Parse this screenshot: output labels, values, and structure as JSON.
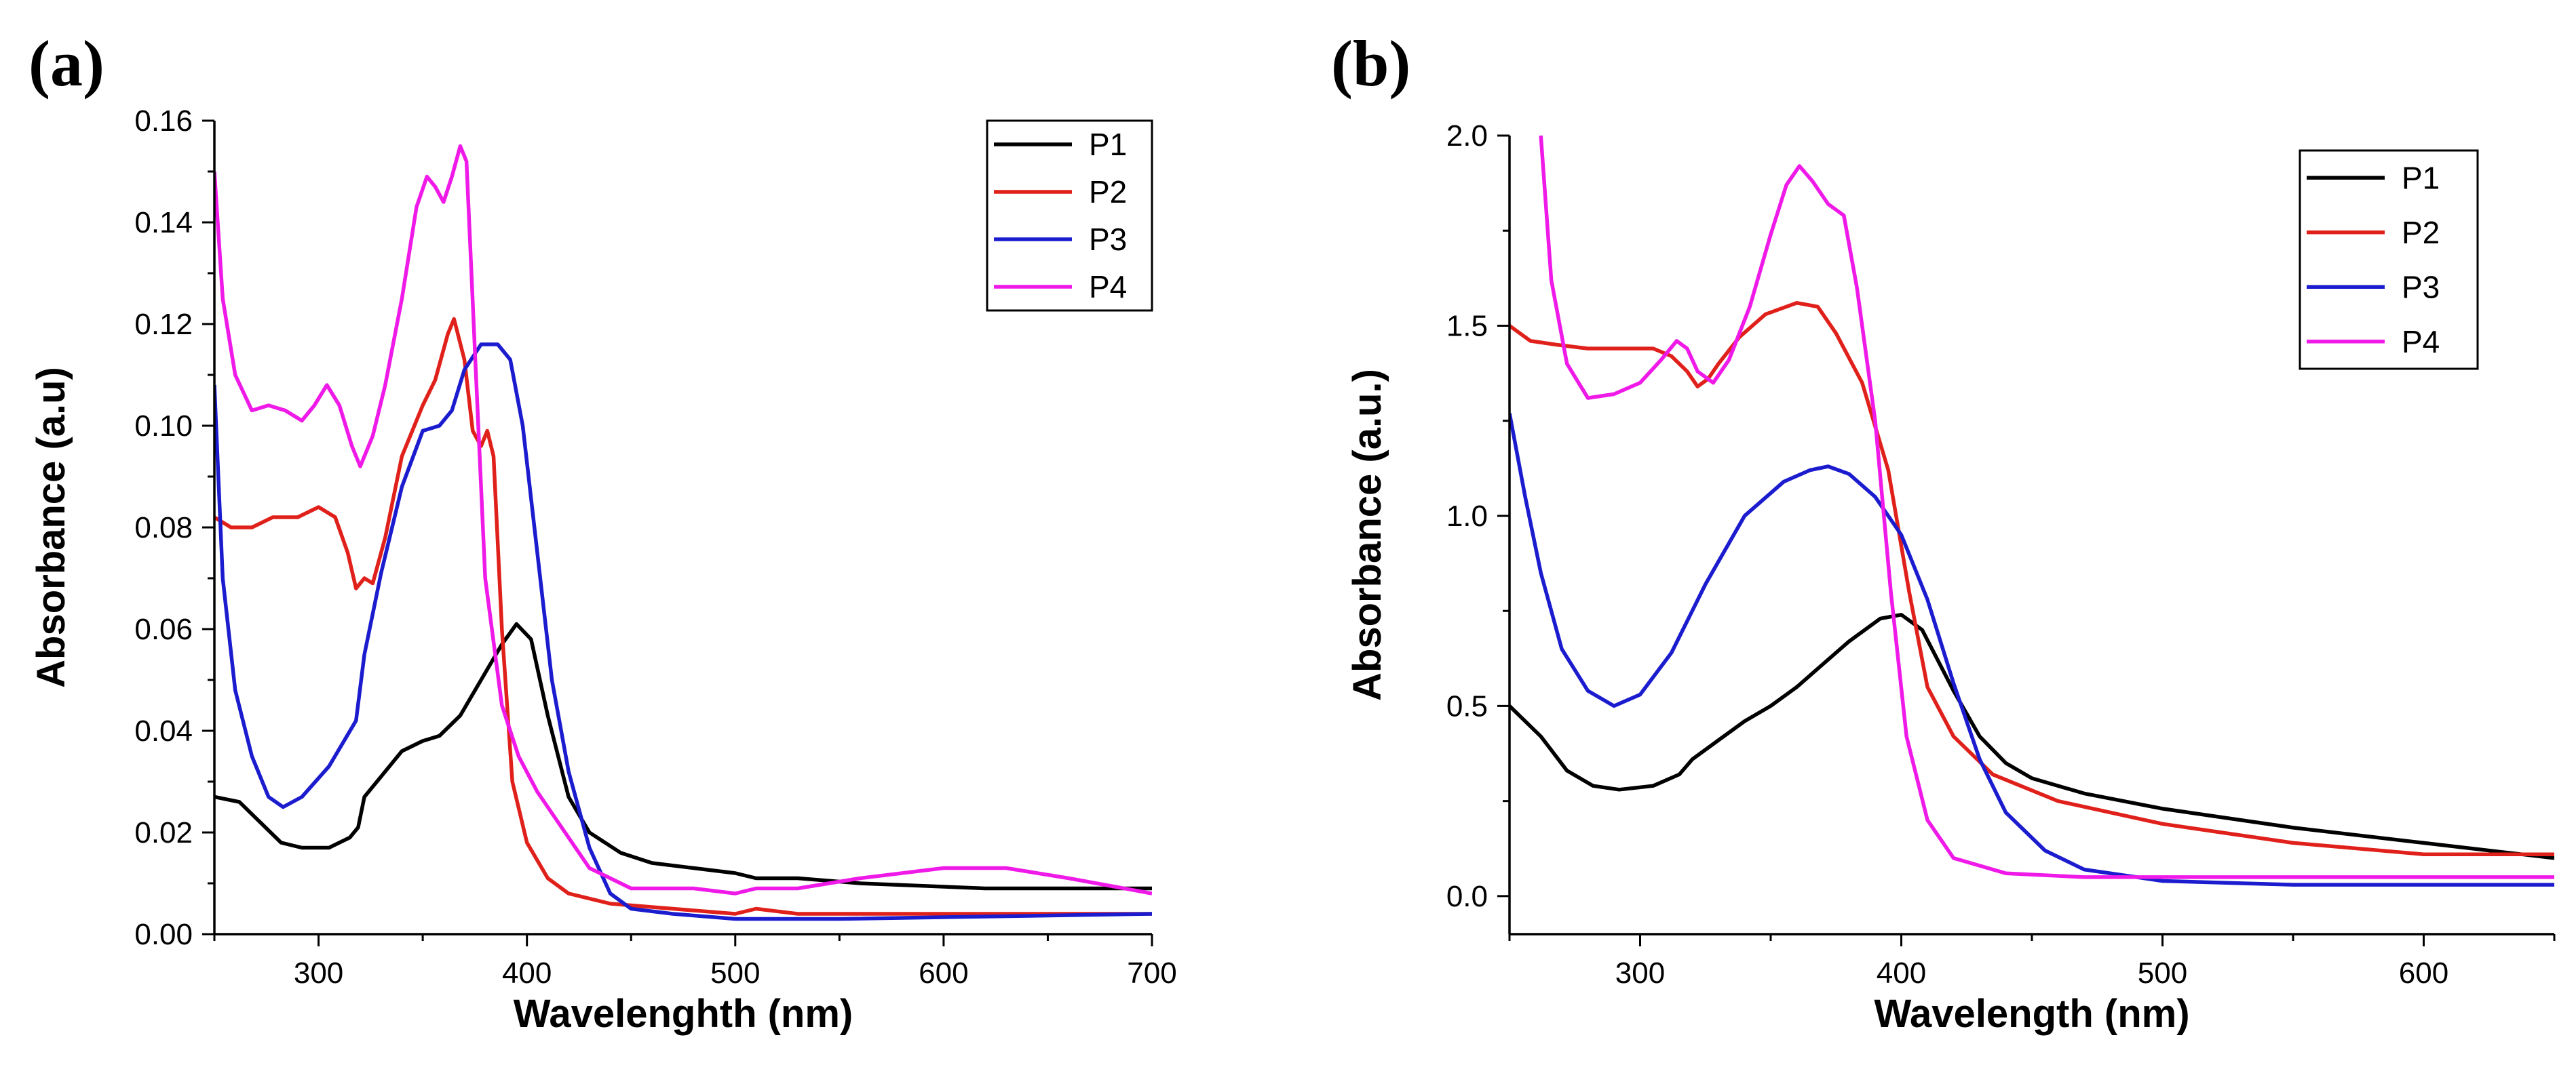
{
  "chart_data": [
    {
      "panel": "(a)",
      "type": "line",
      "title": "",
      "xlabel": "Wavelenghth (nm)",
      "ylabel": "Absorbance (a.u)",
      "xlim": [
        250,
        700
      ],
      "ylim": [
        0,
        0.16
      ],
      "xticks": [
        300,
        400,
        500,
        600,
        700
      ],
      "yticks": [
        0.0,
        0.02,
        0.04,
        0.06,
        0.08,
        0.1,
        0.12,
        0.14,
        0.16
      ],
      "ytick_labels": [
        "0.00",
        "0.02",
        "0.04",
        "0.06",
        "0.08",
        "0.10",
        "0.12",
        "0.14",
        "0.16"
      ],
      "legend": "top-right",
      "series": [
        {
          "name": "P1",
          "color": "#000000",
          "points": [
            [
              250,
              0.027
            ],
            [
              262,
              0.026
            ],
            [
              272,
              0.022
            ],
            [
              282,
              0.018
            ],
            [
              292,
              0.017
            ],
            [
              305,
              0.017
            ],
            [
              315,
              0.019
            ],
            [
              319,
              0.021
            ],
            [
              322,
              0.027
            ],
            [
              330,
              0.031
            ],
            [
              340,
              0.036
            ],
            [
              350,
              0.038
            ],
            [
              358,
              0.039
            ],
            [
              368,
              0.043
            ],
            [
              378,
              0.05
            ],
            [
              388,
              0.057
            ],
            [
              395,
              0.061
            ],
            [
              402,
              0.058
            ],
            [
              410,
              0.043
            ],
            [
              420,
              0.027
            ],
            [
              430,
              0.02
            ],
            [
              445,
              0.016
            ],
            [
              460,
              0.014
            ],
            [
              480,
              0.013
            ],
            [
              500,
              0.012
            ],
            [
              510,
              0.011
            ],
            [
              530,
              0.011
            ],
            [
              560,
              0.01
            ],
            [
              620,
              0.009
            ],
            [
              700,
              0.009
            ]
          ]
        },
        {
          "name": "P2",
          "color": "#e0201a",
          "points": [
            [
              250,
              0.082
            ],
            [
              258,
              0.08
            ],
            [
              268,
              0.08
            ],
            [
              278,
              0.082
            ],
            [
              290,
              0.082
            ],
            [
              300,
              0.084
            ],
            [
              308,
              0.082
            ],
            [
              314,
              0.075
            ],
            [
              318,
              0.068
            ],
            [
              322,
              0.07
            ],
            [
              326,
              0.069
            ],
            [
              332,
              0.078
            ],
            [
              340,
              0.094
            ],
            [
              350,
              0.104
            ],
            [
              356,
              0.109
            ],
            [
              362,
              0.118
            ],
            [
              365,
              0.121
            ],
            [
              370,
              0.113
            ],
            [
              374,
              0.099
            ],
            [
              378,
              0.096
            ],
            [
              381,
              0.099
            ],
            [
              384,
              0.094
            ],
            [
              388,
              0.06
            ],
            [
              393,
              0.03
            ],
            [
              400,
              0.018
            ],
            [
              410,
              0.011
            ],
            [
              420,
              0.008
            ],
            [
              440,
              0.006
            ],
            [
              470,
              0.005
            ],
            [
              500,
              0.004
            ],
            [
              510,
              0.005
            ],
            [
              530,
              0.004
            ],
            [
              600,
              0.004
            ],
            [
              700,
              0.004
            ]
          ]
        },
        {
          "name": "P3",
          "color": "#1c1ccf",
          "points": [
            [
              250,
              0.108
            ],
            [
              254,
              0.07
            ],
            [
              260,
              0.048
            ],
            [
              268,
              0.035
            ],
            [
              276,
              0.027
            ],
            [
              283,
              0.025
            ],
            [
              292,
              0.027
            ],
            [
              305,
              0.033
            ],
            [
              318,
              0.042
            ],
            [
              322,
              0.055
            ],
            [
              330,
              0.071
            ],
            [
              340,
              0.088
            ],
            [
              350,
              0.099
            ],
            [
              358,
              0.1
            ],
            [
              364,
              0.103
            ],
            [
              370,
              0.111
            ],
            [
              378,
              0.116
            ],
            [
              386,
              0.116
            ],
            [
              392,
              0.113
            ],
            [
              398,
              0.1
            ],
            [
              405,
              0.075
            ],
            [
              412,
              0.05
            ],
            [
              420,
              0.032
            ],
            [
              430,
              0.017
            ],
            [
              440,
              0.008
            ],
            [
              450,
              0.005
            ],
            [
              470,
              0.004
            ],
            [
              500,
              0.003
            ],
            [
              510,
              0.003
            ],
            [
              550,
              0.003
            ],
            [
              700,
              0.004
            ]
          ]
        },
        {
          "name": "P4",
          "color": "#ef1ae8",
          "points": [
            [
              250,
              0.15
            ],
            [
              254,
              0.125
            ],
            [
              260,
              0.11
            ],
            [
              268,
              0.103
            ],
            [
              276,
              0.104
            ],
            [
              284,
              0.103
            ],
            [
              292,
              0.101
            ],
            [
              298,
              0.104
            ],
            [
              304,
              0.108
            ],
            [
              310,
              0.104
            ],
            [
              316,
              0.096
            ],
            [
              320,
              0.092
            ],
            [
              326,
              0.098
            ],
            [
              332,
              0.108
            ],
            [
              340,
              0.125
            ],
            [
              347,
              0.143
            ],
            [
              352,
              0.149
            ],
            [
              356,
              0.147
            ],
            [
              360,
              0.144
            ],
            [
              364,
              0.149
            ],
            [
              368,
              0.155
            ],
            [
              371,
              0.152
            ],
            [
              375,
              0.115
            ],
            [
              380,
              0.07
            ],
            [
              388,
              0.045
            ],
            [
              396,
              0.035
            ],
            [
              405,
              0.028
            ],
            [
              415,
              0.022
            ],
            [
              430,
              0.013
            ],
            [
              450,
              0.009
            ],
            [
              480,
              0.009
            ],
            [
              500,
              0.008
            ],
            [
              510,
              0.009
            ],
            [
              530,
              0.009
            ],
            [
              560,
              0.011
            ],
            [
              600,
              0.013
            ],
            [
              630,
              0.013
            ],
            [
              660,
              0.011
            ],
            [
              700,
              0.008
            ]
          ]
        }
      ]
    },
    {
      "panel": "(b)",
      "type": "line",
      "title": "",
      "xlabel": "Wavelength (nm)",
      "ylabel": "Absorbance (a.u.)",
      "xlim": [
        250,
        650
      ],
      "ylim": [
        -0.1,
        2.0
      ],
      "xticks": [
        300,
        400,
        500,
        600
      ],
      "yticks": [
        0.0,
        0.5,
        1.0,
        1.5,
        2.0
      ],
      "ytick_labels": [
        "0.0",
        "0.5",
        "1.0",
        "1.5",
        "2.0"
      ],
      "legend": "top-right",
      "series": [
        {
          "name": "P1",
          "color": "#000000",
          "points": [
            [
              250,
              0.5
            ],
            [
              262,
              0.42
            ],
            [
              272,
              0.33
            ],
            [
              282,
              0.29
            ],
            [
              292,
              0.28
            ],
            [
              305,
              0.29
            ],
            [
              315,
              0.32
            ],
            [
              320,
              0.36
            ],
            [
              330,
              0.41
            ],
            [
              340,
              0.46
            ],
            [
              350,
              0.5
            ],
            [
              360,
              0.55
            ],
            [
              370,
              0.61
            ],
            [
              380,
              0.67
            ],
            [
              392,
              0.73
            ],
            [
              400,
              0.74
            ],
            [
              408,
              0.7
            ],
            [
              420,
              0.54
            ],
            [
              430,
              0.42
            ],
            [
              440,
              0.35
            ],
            [
              450,
              0.31
            ],
            [
              470,
              0.27
            ],
            [
              500,
              0.23
            ],
            [
              520,
              0.21
            ],
            [
              550,
              0.18
            ],
            [
              600,
              0.14
            ],
            [
              650,
              0.1
            ]
          ]
        },
        {
          "name": "P2",
          "color": "#e0201a",
          "points": [
            [
              250,
              1.5
            ],
            [
              258,
              1.46
            ],
            [
              268,
              1.45
            ],
            [
              280,
              1.44
            ],
            [
              295,
              1.44
            ],
            [
              305,
              1.44
            ],
            [
              312,
              1.42
            ],
            [
              318,
              1.38
            ],
            [
              322,
              1.34
            ],
            [
              326,
              1.36
            ],
            [
              330,
              1.4
            ],
            [
              338,
              1.47
            ],
            [
              348,
              1.53
            ],
            [
              360,
              1.56
            ],
            [
              368,
              1.55
            ],
            [
              375,
              1.48
            ],
            [
              385,
              1.35
            ],
            [
              395,
              1.12
            ],
            [
              403,
              0.8
            ],
            [
              410,
              0.55
            ],
            [
              420,
              0.42
            ],
            [
              435,
              0.32
            ],
            [
              460,
              0.25
            ],
            [
              500,
              0.19
            ],
            [
              550,
              0.14
            ],
            [
              600,
              0.11
            ],
            [
              650,
              0.11
            ]
          ]
        },
        {
          "name": "P3",
          "color": "#1c1ccf",
          "points": [
            [
              250,
              1.27
            ],
            [
              256,
              1.05
            ],
            [
              262,
              0.85
            ],
            [
              270,
              0.65
            ],
            [
              280,
              0.54
            ],
            [
              290,
              0.5
            ],
            [
              300,
              0.53
            ],
            [
              312,
              0.64
            ],
            [
              325,
              0.82
            ],
            [
              340,
              1.0
            ],
            [
              355,
              1.09
            ],
            [
              365,
              1.12
            ],
            [
              372,
              1.13
            ],
            [
              380,
              1.11
            ],
            [
              390,
              1.05
            ],
            [
              400,
              0.95
            ],
            [
              410,
              0.78
            ],
            [
              420,
              0.56
            ],
            [
              430,
              0.36
            ],
            [
              440,
              0.22
            ],
            [
              455,
              0.12
            ],
            [
              470,
              0.07
            ],
            [
              500,
              0.04
            ],
            [
              550,
              0.03
            ],
            [
              650,
              0.03
            ]
          ]
        },
        {
          "name": "P4",
          "color": "#ef1ae8",
          "points": [
            [
              262,
              2.0
            ],
            [
              266,
              1.62
            ],
            [
              272,
              1.4
            ],
            [
              280,
              1.31
            ],
            [
              290,
              1.32
            ],
            [
              300,
              1.35
            ],
            [
              308,
              1.41
            ],
            [
              314,
              1.46
            ],
            [
              318,
              1.44
            ],
            [
              322,
              1.38
            ],
            [
              328,
              1.35
            ],
            [
              334,
              1.41
            ],
            [
              342,
              1.55
            ],
            [
              350,
              1.74
            ],
            [
              356,
              1.87
            ],
            [
              361,
              1.92
            ],
            [
              366,
              1.88
            ],
            [
              372,
              1.82
            ],
            [
              378,
              1.79
            ],
            [
              383,
              1.6
            ],
            [
              390,
              1.25
            ],
            [
              396,
              0.8
            ],
            [
              402,
              0.42
            ],
            [
              410,
              0.2
            ],
            [
              420,
              0.1
            ],
            [
              440,
              0.06
            ],
            [
              470,
              0.05
            ],
            [
              550,
              0.05
            ],
            [
              650,
              0.05
            ]
          ]
        }
      ]
    }
  ]
}
